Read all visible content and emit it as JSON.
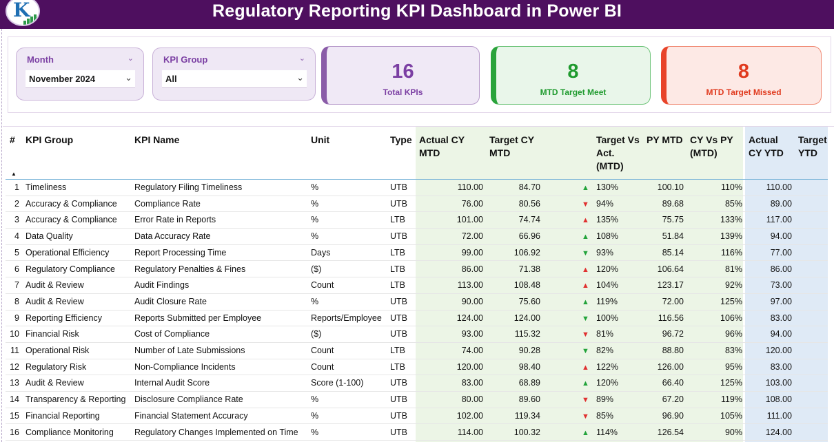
{
  "header": {
    "title": "Regulatory Reporting KPI Dashboard in Power BI",
    "logo_icon": "chart-logo-icon"
  },
  "filters": [
    {
      "label": "Month",
      "value": "November 2024"
    },
    {
      "label": "KPI Group",
      "value": "All"
    }
  ],
  "cards": {
    "total": {
      "value": "16",
      "label": "Total KPIs"
    },
    "meet": {
      "value": "8",
      "label": "MTD Target Meet"
    },
    "missed": {
      "value": "8",
      "label": "MTD Target Missed"
    }
  },
  "colors": {
    "header": "#4e0f5f",
    "up": "#22a33a",
    "down": "#e03030",
    "mtd_bg": "#ecf5e6",
    "ytd_bg": "#dfeaf6"
  },
  "table": {
    "headers": {
      "num": "#",
      "group": "KPI Group",
      "name": "KPI Name",
      "unit": "Unit",
      "type": "Type",
      "actual_mtd": [
        "Actual CY",
        "MTD"
      ],
      "target_mtd": [
        "Target CY",
        "MTD"
      ],
      "tva": [
        "Target Vs",
        "Act.",
        "(MTD)"
      ],
      "py_mtd": [
        "PY MTD"
      ],
      "cvp": [
        "CY Vs PY",
        "(MTD)"
      ],
      "actual_ytd": [
        "Actual",
        "CY YTD"
      ],
      "target_ytd": [
        "Target",
        "YTD"
      ]
    },
    "rows": [
      {
        "n": "1",
        "group": "Timeliness",
        "name": "Regulatory Filing Timeliness",
        "unit": "%",
        "type": "UTB",
        "actual": "110.00",
        "target": "84.70",
        "dir": "up",
        "tva": "130%",
        "py": "100.10",
        "cvp": "110%",
        "aytd": "110.00"
      },
      {
        "n": "2",
        "group": "Accuracy & Compliance",
        "name": "Compliance Rate",
        "unit": "%",
        "type": "UTB",
        "actual": "76.00",
        "target": "80.56",
        "dir": "down",
        "tva": "94%",
        "py": "89.68",
        "cvp": "85%",
        "aytd": "89.00"
      },
      {
        "n": "3",
        "group": "Accuracy & Compliance",
        "name": "Error Rate in Reports",
        "unit": "%",
        "type": "LTB",
        "actual": "101.00",
        "target": "74.74",
        "dir": "up-red",
        "tva": "135%",
        "py": "75.75",
        "cvp": "133%",
        "aytd": "117.00"
      },
      {
        "n": "4",
        "group": "Data Quality",
        "name": "Data Accuracy Rate",
        "unit": "%",
        "type": "UTB",
        "actual": "72.00",
        "target": "66.96",
        "dir": "up",
        "tva": "108%",
        "py": "51.84",
        "cvp": "139%",
        "aytd": "94.00"
      },
      {
        "n": "5",
        "group": "Operational Efficiency",
        "name": "Report Processing Time",
        "unit": "Days",
        "type": "LTB",
        "actual": "99.00",
        "target": "106.92",
        "dir": "down-green",
        "tva": "93%",
        "py": "85.14",
        "cvp": "116%",
        "aytd": "77.00"
      },
      {
        "n": "6",
        "group": "Regulatory Compliance",
        "name": "Regulatory Penalties & Fines",
        "unit": "($)",
        "type": "LTB",
        "actual": "86.00",
        "target": "71.38",
        "dir": "up-red",
        "tva": "120%",
        "py": "106.64",
        "cvp": "81%",
        "aytd": "86.00"
      },
      {
        "n": "7",
        "group": "Audit & Review",
        "name": "Audit Findings",
        "unit": "Count",
        "type": "LTB",
        "actual": "113.00",
        "target": "108.48",
        "dir": "up-red",
        "tva": "104%",
        "py": "123.17",
        "cvp": "92%",
        "aytd": "73.00"
      },
      {
        "n": "8",
        "group": "Audit & Review",
        "name": "Audit Closure Rate",
        "unit": "%",
        "type": "UTB",
        "actual": "90.00",
        "target": "75.60",
        "dir": "up",
        "tva": "119%",
        "py": "72.00",
        "cvp": "125%",
        "aytd": "97.00"
      },
      {
        "n": "9",
        "group": "Reporting Efficiency",
        "name": "Reports Submitted per Employee",
        "unit": "Reports/Employee",
        "type": "UTB",
        "actual": "124.00",
        "target": "124.00",
        "dir": "down-green",
        "tva": "100%",
        "py": "116.56",
        "cvp": "106%",
        "aytd": "83.00"
      },
      {
        "n": "10",
        "group": "Financial Risk",
        "name": "Cost of Compliance",
        "unit": "($)",
        "type": "UTB",
        "actual": "93.00",
        "target": "115.32",
        "dir": "down",
        "tva": "81%",
        "py": "96.72",
        "cvp": "96%",
        "aytd": "94.00"
      },
      {
        "n": "11",
        "group": "Operational Risk",
        "name": "Number of Late Submissions",
        "unit": "Count",
        "type": "LTB",
        "actual": "74.00",
        "target": "90.28",
        "dir": "down-green",
        "tva": "82%",
        "py": "88.80",
        "cvp": "83%",
        "aytd": "120.00"
      },
      {
        "n": "12",
        "group": "Regulatory Risk",
        "name": "Non-Compliance Incidents",
        "unit": "Count",
        "type": "LTB",
        "actual": "120.00",
        "target": "98.40",
        "dir": "up-red",
        "tva": "122%",
        "py": "126.00",
        "cvp": "95%",
        "aytd": "83.00"
      },
      {
        "n": "13",
        "group": "Audit & Review",
        "name": "Internal Audit Score",
        "unit": "Score (1-100)",
        "type": "UTB",
        "actual": "83.00",
        "target": "68.89",
        "dir": "up",
        "tva": "120%",
        "py": "66.40",
        "cvp": "125%",
        "aytd": "103.00"
      },
      {
        "n": "14",
        "group": "Transparency & Reporting",
        "name": "Disclosure Compliance Rate",
        "unit": "%",
        "type": "UTB",
        "actual": "80.00",
        "target": "89.60",
        "dir": "down",
        "tva": "89%",
        "py": "67.20",
        "cvp": "119%",
        "aytd": "108.00"
      },
      {
        "n": "15",
        "group": "Financial Reporting",
        "name": "Financial Statement Accuracy",
        "unit": "%",
        "type": "UTB",
        "actual": "102.00",
        "target": "119.34",
        "dir": "down",
        "tva": "85%",
        "py": "96.90",
        "cvp": "105%",
        "aytd": "111.00"
      },
      {
        "n": "16",
        "group": "Compliance Monitoring",
        "name": "Regulatory Changes Implemented on Time",
        "unit": "%",
        "type": "UTB",
        "actual": "114.00",
        "target": "100.32",
        "dir": "up",
        "tva": "114%",
        "py": "126.54",
        "cvp": "90%",
        "aytd": "124.00"
      }
    ]
  }
}
